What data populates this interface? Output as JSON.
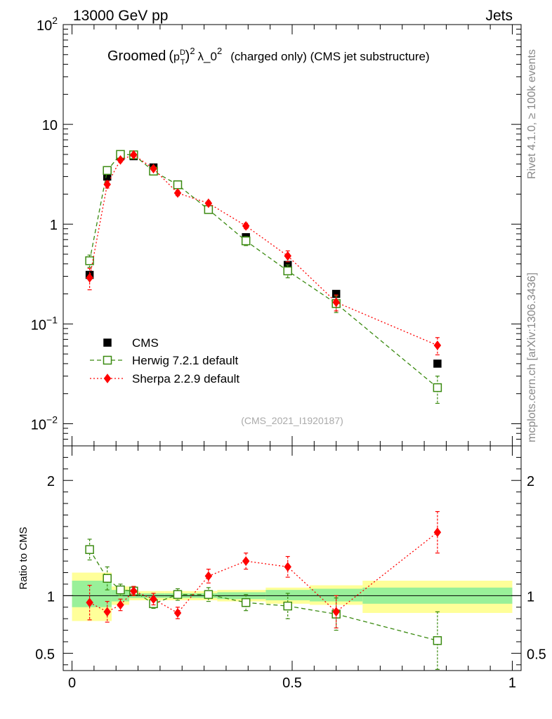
{
  "header": {
    "energy_label": "13000 GeV pp",
    "category_label": "Jets"
  },
  "side": {
    "rivet_label": "Rivet 4.1.0, ≥ 100k events",
    "source_label": "mcplots.cern.ch [arXiv:1306.3436]"
  },
  "chart_data": {
    "type": "scatter",
    "title": {
      "prefix": "Groomed",
      "pt": "p",
      "pt_sup": "D",
      "pt_sub": "T",
      "exp": "2",
      "lambda": "λ_0",
      "lambda_exp": "2",
      "suffix": "(charged only) (CMS jet substructure)"
    },
    "watermark": "(CMS_2021_I1920187)",
    "main_panel": {
      "yscale": "log",
      "ylim": [
        0.006,
        100
      ],
      "y_ticks": [
        {
          "value": 100,
          "base": "10",
          "exp": "2"
        },
        {
          "value": 10,
          "base": "10",
          "exp": ""
        },
        {
          "value": 1,
          "base": "1",
          "exp": ""
        },
        {
          "value": 0.1,
          "base": "10",
          "exp": "−1"
        },
        {
          "value": 0.01,
          "base": "10",
          "exp": "−2"
        }
      ]
    },
    "ratio_panel": {
      "ylabel": "Ratio to CMS",
      "ylim": [
        0.35,
        2.3
      ],
      "y_ticks": [
        {
          "value": 2,
          "label": "2"
        },
        {
          "value": 1,
          "label": "1"
        },
        {
          "value": 0.5,
          "label": "0.5"
        }
      ]
    },
    "xlim": [
      -0.02,
      1.02
    ],
    "x_ticks": [
      {
        "value": 0,
        "label": "0"
      },
      {
        "value": 0.5,
        "label": "0.5"
      },
      {
        "value": 1,
        "label": "1"
      }
    ],
    "legend": {
      "position": "bottom-left"
    },
    "series": [
      {
        "name": "CMS",
        "style": "data",
        "color": "#000000",
        "x": [
          0.04,
          0.08,
          0.11,
          0.14,
          0.185,
          0.24,
          0.31,
          0.395,
          0.49,
          0.6,
          0.83
        ],
        "y": [
          0.31,
          3.0,
          4.8,
          4.8,
          3.7,
          2.5,
          1.4,
          0.74,
          0.39,
          0.2,
          0.04
        ]
      },
      {
        "name": "Herwig 7.2.1 default",
        "style": "open-square",
        "color": "#3a8a10",
        "x": [
          0.04,
          0.08,
          0.11,
          0.14,
          0.185,
          0.24,
          0.31,
          0.395,
          0.49,
          0.6,
          0.83
        ],
        "y": [
          0.43,
          3.45,
          5.0,
          4.95,
          3.4,
          2.48,
          1.4,
          0.68,
          0.34,
          0.16,
          0.023
        ],
        "y_err": [
          0.06,
          0.3,
          0.3,
          0.25,
          0.2,
          0.15,
          0.1,
          0.07,
          0.05,
          0.03,
          0.007
        ],
        "ratio": [
          1.4,
          1.15,
          1.05,
          1.04,
          0.93,
          1.01,
          1.01,
          0.94,
          0.91,
          0.84,
          0.61
        ],
        "ratio_err": [
          0.09,
          0.1,
          0.05,
          0.04,
          0.04,
          0.05,
          0.06,
          0.07,
          0.11,
          0.14,
          0.25
        ]
      },
      {
        "name": "Sherpa 2.2.9 default",
        "style": "diamond",
        "color": "#ff0000",
        "x": [
          0.04,
          0.08,
          0.11,
          0.14,
          0.185,
          0.24,
          0.31,
          0.395,
          0.49,
          0.6,
          0.83
        ],
        "y": [
          0.29,
          2.5,
          4.4,
          4.95,
          3.6,
          2.05,
          1.62,
          0.96,
          0.48,
          0.165,
          0.061
        ],
        "y_err": [
          0.07,
          0.2,
          0.2,
          0.2,
          0.15,
          0.12,
          0.08,
          0.06,
          0.06,
          0.03,
          0.012
        ],
        "ratio": [
          0.94,
          0.86,
          0.92,
          1.04,
          0.97,
          0.85,
          1.17,
          1.3,
          1.25,
          0.86,
          1.55
        ],
        "ratio_err": [
          0.15,
          0.09,
          0.05,
          0.04,
          0.05,
          0.05,
          0.06,
          0.07,
          0.09,
          0.14,
          0.18
        ]
      }
    ],
    "uncertainty_bands": {
      "edges": [
        0,
        0.09,
        0.13,
        0.21,
        0.33,
        0.44,
        0.54,
        0.66,
        1.0
      ],
      "stat": [
        [
          0.9,
          1.13
        ],
        [
          0.95,
          1.05
        ],
        [
          0.98,
          1.02
        ],
        [
          0.98,
          1.02
        ],
        [
          0.97,
          1.03
        ],
        [
          0.96,
          1.05
        ],
        [
          0.95,
          1.06
        ],
        [
          0.93,
          1.07
        ]
      ],
      "total": [
        [
          0.78,
          1.2
        ],
        [
          0.92,
          1.08
        ],
        [
          0.96,
          1.04
        ],
        [
          0.96,
          1.04
        ],
        [
          0.95,
          1.05
        ],
        [
          0.93,
          1.07
        ],
        [
          0.92,
          1.09
        ],
        [
          0.85,
          1.13
        ]
      ]
    }
  }
}
